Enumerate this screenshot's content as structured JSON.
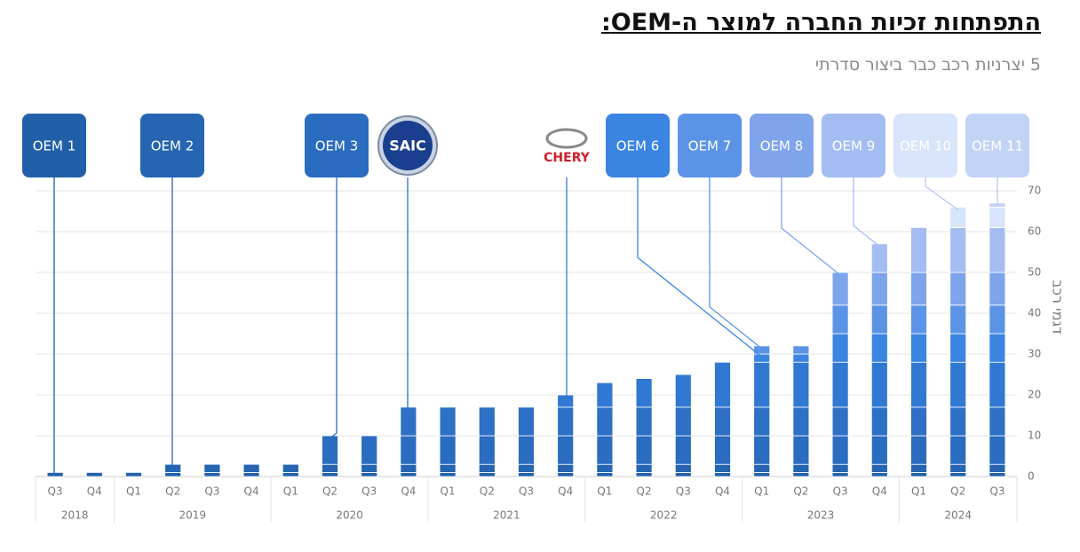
{
  "chart_data": {
    "type": "stacked-bar",
    "title": "התפתחות זכיות החברה למוצר ה-OEM:",
    "subtitle": "5 יצרניות רכב כבר ביצור סדרתי",
    "y_axis_label": "דגמי רכב",
    "categories": [
      "Q3",
      "Q4",
      "Q1",
      "Q2",
      "Q3",
      "Q4",
      "Q1",
      "Q2",
      "Q3",
      "Q4",
      "Q1",
      "Q2",
      "Q3",
      "Q4",
      "Q1",
      "Q2",
      "Q3",
      "Q4",
      "Q1",
      "Q2",
      "Q3",
      "Q4",
      "Q1",
      "Q2",
      "Q3"
    ],
    "category_groups": [
      "2018",
      "2018",
      "2019",
      "2019",
      "2019",
      "2019",
      "2020",
      "2020",
      "2020",
      "2020",
      "2021",
      "2021",
      "2021",
      "2021",
      "2022",
      "2022",
      "2022",
      "2022",
      "2023",
      "2023",
      "2023",
      "2023",
      "2024",
      "2024",
      "2024"
    ],
    "ylim": [
      0,
      70
    ],
    "yticks": [
      0,
      10,
      20,
      30,
      40,
      50,
      60,
      70
    ],
    "grid": true,
    "series": [
      {
        "name": "OEM 1",
        "color": "#2160a8",
        "values": [
          1,
          1,
          1,
          1,
          1,
          1,
          1,
          1,
          1,
          1,
          1,
          1,
          1,
          1,
          1,
          1,
          1,
          1,
          1,
          1,
          1,
          1,
          1,
          1,
          1
        ]
      },
      {
        "name": "OEM 2",
        "color": "#2565b2",
        "values": [
          null,
          null,
          null,
          2,
          2,
          2,
          2,
          2,
          2,
          2,
          2,
          2,
          2,
          2,
          2,
          2,
          2,
          2,
          2,
          2,
          2,
          2,
          2,
          2,
          2
        ]
      },
      {
        "name": "OEM 3",
        "color": "#2a6cc0",
        "values": [
          null,
          null,
          null,
          null,
          null,
          null,
          null,
          7,
          7,
          7,
          7,
          7,
          7,
          7,
          7,
          7,
          7,
          7,
          7,
          7,
          7,
          7,
          7,
          7,
          7
        ]
      },
      {
        "name": "SAIC",
        "color": "#2d70c6",
        "values": [
          null,
          null,
          null,
          null,
          null,
          null,
          null,
          null,
          null,
          7,
          7,
          7,
          7,
          7,
          7,
          7,
          7,
          7,
          7,
          7,
          7,
          7,
          7,
          7,
          7
        ]
      },
      {
        "name": "CHERY",
        "color": "#3078d2",
        "values": [
          null,
          null,
          null,
          null,
          null,
          null,
          null,
          null,
          null,
          null,
          null,
          null,
          null,
          3,
          6,
          7,
          8,
          11,
          11,
          11,
          11,
          11,
          11,
          11,
          11
        ]
      },
      {
        "name": "OEM 6",
        "color": "#3a84e2",
        "values": [
          null,
          null,
          null,
          null,
          null,
          null,
          null,
          null,
          null,
          null,
          null,
          null,
          null,
          null,
          null,
          null,
          null,
          null,
          2,
          2,
          7,
          7,
          7,
          7,
          7
        ]
      },
      {
        "name": "OEM 7",
        "color": "#5b94e6",
        "values": [
          null,
          null,
          null,
          null,
          null,
          null,
          null,
          null,
          null,
          null,
          null,
          null,
          null,
          null,
          null,
          null,
          null,
          null,
          2,
          2,
          7,
          7,
          7,
          7,
          7
        ]
      },
      {
        "name": "OEM 8",
        "color": "#7ea4ec",
        "values": [
          null,
          null,
          null,
          null,
          null,
          null,
          null,
          null,
          null,
          null,
          null,
          null,
          null,
          null,
          null,
          null,
          null,
          null,
          null,
          null,
          8,
          8,
          8,
          8,
          8
        ]
      },
      {
        "name": "OEM 9",
        "color": "#a3bcf2",
        "values": [
          null,
          null,
          null,
          null,
          null,
          null,
          null,
          null,
          null,
          null,
          null,
          null,
          null,
          null,
          null,
          null,
          null,
          null,
          null,
          null,
          null,
          7,
          11,
          11,
          11
        ]
      },
      {
        "name": "OEM 10",
        "color": "#d7e4fa",
        "values": [
          null,
          null,
          null,
          null,
          null,
          null,
          null,
          null,
          null,
          null,
          null,
          null,
          null,
          null,
          null,
          null,
          null,
          null,
          null,
          null,
          null,
          null,
          null,
          5,
          5
        ]
      },
      {
        "name": "OEM 11",
        "color": "#c3d3f6",
        "values": [
          null,
          null,
          null,
          null,
          null,
          null,
          null,
          null,
          null,
          null,
          null,
          null,
          null,
          null,
          null,
          null,
          null,
          null,
          null,
          null,
          null,
          null,
          null,
          null,
          1
        ]
      }
    ]
  }
}
